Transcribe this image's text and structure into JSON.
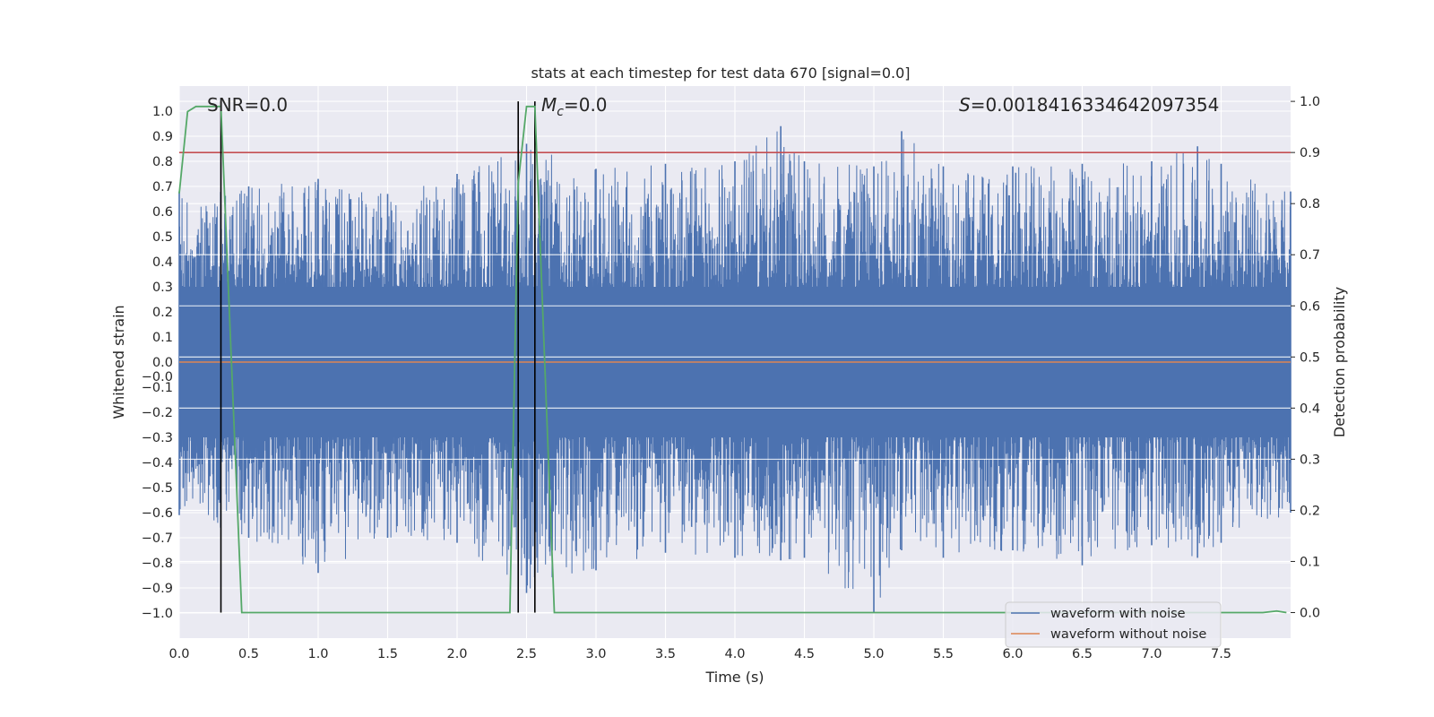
{
  "chart_data": {
    "type": "line",
    "title": "stats at each timestep for test data 670 [signal=0.0]",
    "xlabel": "Time (s)",
    "ylabel": "Whitened strain",
    "ylabel_right": "Detection probability",
    "xlim": [
      0.0,
      8.0
    ],
    "ylim": [
      -1.1,
      1.1
    ],
    "ylim_right": [
      -0.05,
      1.03
    ],
    "x_ticks": [
      "0.0",
      "0.5",
      "1.0",
      "1.5",
      "2.0",
      "2.5",
      "3.0",
      "3.5",
      "4.0",
      "4.5",
      "5.0",
      "5.5",
      "6.0",
      "6.5",
      "7.0",
      "7.5"
    ],
    "y_ticks": [
      "1.0",
      "0.9",
      "0.8",
      "0.7",
      "0.6",
      "0.5",
      "0.4",
      "0.3",
      "0.2",
      "0.1",
      "0.0",
      "−0.0",
      "−0.1",
      "−0.2",
      "−0.3",
      "−0.4",
      "−0.5",
      "−0.6",
      "−0.7",
      "−0.8",
      "−0.9",
      "−1.0"
    ],
    "y_tick_values": [
      1.0,
      0.9,
      0.8,
      0.7,
      0.6,
      0.5,
      0.4,
      0.3,
      0.2,
      0.1,
      0.0,
      -0.0,
      -0.1,
      -0.2,
      -0.3,
      -0.4,
      -0.5,
      -0.6,
      -0.7,
      -0.8,
      -0.9,
      -1.0
    ],
    "y2_ticks": [
      "0.0",
      "0.1",
      "0.2",
      "0.3",
      "0.4",
      "0.5",
      "0.6",
      "0.7",
      "0.8",
      "0.9",
      "1.0"
    ],
    "y2_tick_values": [
      0.0,
      0.1,
      0.2,
      0.3,
      0.4,
      0.5,
      0.6,
      0.7,
      0.8,
      0.9,
      1.0
    ],
    "annotations": {
      "snr": "SNR=0.0",
      "mc_symbol": "M",
      "mc_sub": "c",
      "mc_value": "=0.0",
      "s_symbol": "S",
      "s_value": "=0.0018416334642097354"
    },
    "threshold": {
      "value": 0.9,
      "axis": "right",
      "color": "#c44e52"
    },
    "markers": [
      0.3,
      2.44,
      2.56
    ],
    "series": [
      {
        "name": "waveform with noise",
        "color": "#4c72b0",
        "description": "whitened noise, dense band within about ±0.45, peaks up to about ±1.0",
        "envelope": [
          {
            "x": 0.0,
            "max": 0.68,
            "min": -0.61
          },
          {
            "x": 0.5,
            "max": 0.7,
            "min": -0.7
          },
          {
            "x": 1.0,
            "max": 0.73,
            "min": -0.84
          },
          {
            "x": 1.5,
            "max": 0.67,
            "min": -0.7
          },
          {
            "x": 2.0,
            "max": 0.75,
            "min": -0.72
          },
          {
            "x": 2.5,
            "max": 0.87,
            "min": -0.92
          },
          {
            "x": 3.0,
            "max": 0.77,
            "min": -0.83
          },
          {
            "x": 3.5,
            "max": 0.79,
            "min": -0.76
          },
          {
            "x": 4.0,
            "max": 0.8,
            "min": -0.78
          },
          {
            "x": 4.33,
            "max": 0.94,
            "min": -0.79
          },
          {
            "x": 4.5,
            "max": 0.8,
            "min": -0.78
          },
          {
            "x": 5.0,
            "max": 0.78,
            "min": -1.0
          },
          {
            "x": 5.2,
            "max": 0.92,
            "min": -0.75
          },
          {
            "x": 5.5,
            "max": 0.78,
            "min": -0.78
          },
          {
            "x": 6.0,
            "max": 0.78,
            "min": -0.75
          },
          {
            "x": 6.5,
            "max": 0.79,
            "min": -0.81
          },
          {
            "x": 7.0,
            "max": 0.8,
            "min": -0.73
          },
          {
            "x": 7.33,
            "max": 0.86,
            "min": -0.78
          },
          {
            "x": 7.5,
            "max": 0.79,
            "min": -0.72
          },
          {
            "x": 8.0,
            "max": 0.68,
            "min": -0.6
          }
        ]
      },
      {
        "name": "waveform without noise",
        "color": "#dd8452",
        "x": [
          0.0,
          8.0
        ],
        "y": [
          0.0,
          0.0
        ]
      },
      {
        "name": "detection probability",
        "color": "#55a868",
        "axis": "right",
        "x": [
          0.0,
          0.06,
          0.12,
          0.25,
          0.3,
          0.45,
          2.38,
          2.44,
          2.5,
          2.56,
          2.7,
          7.8,
          7.9,
          7.97
        ],
        "y": [
          0.82,
          0.98,
          0.99,
          0.99,
          0.99,
          0.0,
          0.0,
          0.84,
          0.99,
          0.99,
          0.0,
          0.0,
          0.003,
          0.0
        ]
      }
    ],
    "legend": {
      "position": "lower-right",
      "items": [
        "waveform with noise",
        "waveform without noise"
      ]
    }
  }
}
